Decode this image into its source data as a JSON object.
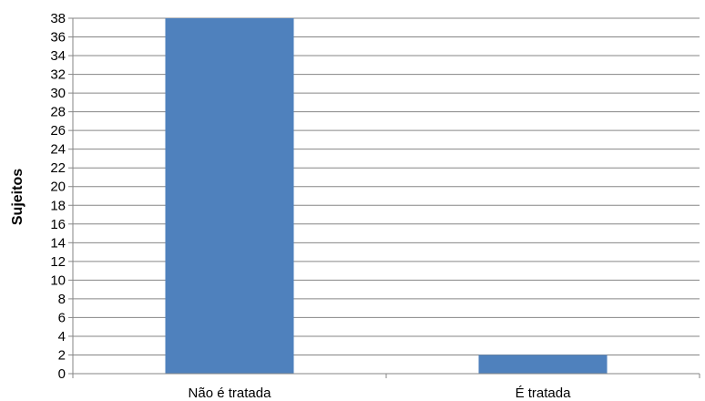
{
  "chart_data": {
    "type": "bar",
    "title": "",
    "xlabel": "",
    "ylabel": "Sujeitos",
    "categories": [
      "Não é tratada",
      "É tratada"
    ],
    "values": [
      38,
      2
    ],
    "ylim": [
      0,
      38
    ],
    "yticks": [
      "0",
      "2",
      "4",
      "6",
      "8",
      "10",
      "12",
      "14",
      "16",
      "18",
      "20",
      "22",
      "24",
      "26",
      "28",
      "30",
      "32",
      "34",
      "36",
      "38"
    ],
    "grid": true,
    "legend": "none",
    "colors": {
      "bar": "#4f81bd",
      "grid": "#868686",
      "axis": "#868686"
    }
  }
}
